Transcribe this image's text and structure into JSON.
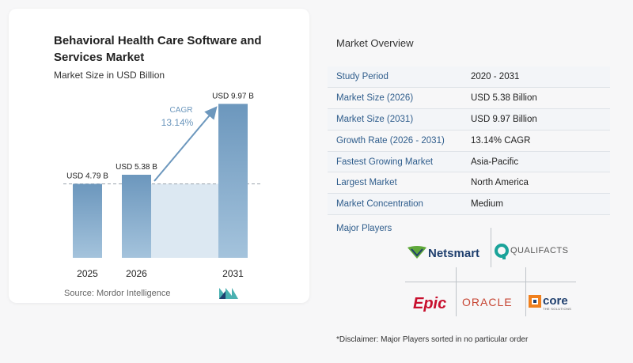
{
  "chart": {
    "title": "Behavioral Health Care Software and Services Market",
    "subtitle": "Market Size in USD Billion",
    "cagr_label": "CAGR",
    "cagr_value": "13.14%",
    "source": "Source:  Mordor Intelligence"
  },
  "chart_data": {
    "type": "bar",
    "categories": [
      "2025",
      "2026",
      "2031"
    ],
    "values": [
      4.79,
      5.38,
      9.97
    ],
    "data_labels": [
      "USD 4.79 B",
      "USD 5.38 B",
      "USD 9.97 B"
    ],
    "title": "Behavioral Health Care Software and Services Market",
    "subtitle": "Market Size in USD Billion",
    "ylim": [
      0,
      10.5
    ],
    "annotation": "CAGR 13.14%",
    "colors": {
      "bar_top": "#6c97bd",
      "bar_bottom": "#a4c3dc",
      "shade": "#dce8f2",
      "cagr_text": "#6c97bd",
      "arrow": "#6c97bd",
      "dashed_line": "#9aa4ad"
    }
  },
  "overview": {
    "title": "Market Overview",
    "rows": [
      {
        "label": "Study Period",
        "value": "2020 - 2031"
      },
      {
        "label": "Market Size (2026)",
        "value": "USD 5.38 Billion"
      },
      {
        "label": "Market Size (2031)",
        "value": "USD 9.97 Billion"
      },
      {
        "label": "Growth Rate (2026 - 2031)",
        "value": "13.14% CAGR"
      },
      {
        "label": "Fastest Growing Market",
        "value": "Asia-Pacific"
      },
      {
        "label": "Largest Market",
        "value": "North America"
      },
      {
        "label": "Market Concentration",
        "value": "Medium"
      }
    ],
    "players_title": "Major Players",
    "players": [
      "Netsmart",
      "QUALIFACTS",
      "Epic",
      "ORACLE",
      "core",
      "THE SOLUTIONS"
    ],
    "disclaimer": "*Disclaimer: Major Players sorted in no particular order"
  },
  "colors": {
    "label_blue": "#2f5d8c",
    "netsmart_green": "#5fa83b",
    "qualifacts_teal": "#1aa39a",
    "epic_red": "#c8102e",
    "oracle_red": "#c74634",
    "core_orange": "#f0801e"
  }
}
